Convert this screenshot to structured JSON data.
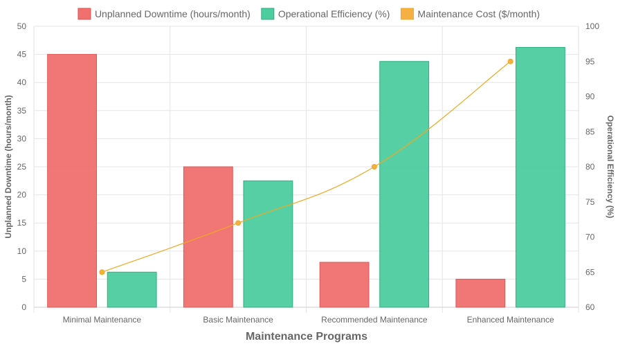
{
  "chart_data": {
    "type": "bar",
    "categories": [
      "Minimal Maintenance",
      "Basic Maintenance",
      "Recommended Maintenance",
      "Enhanced Maintenance"
    ],
    "series": [
      {
        "name": "Unplanned Downtime (hours/month)",
        "type": "bar",
        "axis": "left",
        "values": [
          45,
          25,
          8,
          5
        ],
        "color": "#f07070"
      },
      {
        "name": "Operational Efficiency (%)",
        "type": "bar",
        "axis": "right",
        "values": [
          65,
          78,
          95,
          97
        ],
        "color": "#4dcc9f"
      },
      {
        "name": "Maintenance Cost ($/month)",
        "type": "line",
        "axis": "right",
        "values": [
          65,
          72,
          80,
          95
        ],
        "color": "#f5b041"
      }
    ],
    "xlabel": "Maintenance Programs",
    "ylabel_left": "Unplanned Downtime (hours/month)",
    "ylabel_right": "Operational Efficiency (%)",
    "ylim_left": [
      0,
      50
    ],
    "ylim_right": [
      60,
      100
    ],
    "yticks_left": [
      "0",
      "5",
      "10",
      "15",
      "20",
      "25",
      "30",
      "35",
      "40",
      "45",
      "50"
    ],
    "yticks_right": [
      "60",
      "65",
      "70",
      "75",
      "80",
      "85",
      "90",
      "95",
      "100"
    ],
    "grid": true,
    "legend": "top-center"
  }
}
